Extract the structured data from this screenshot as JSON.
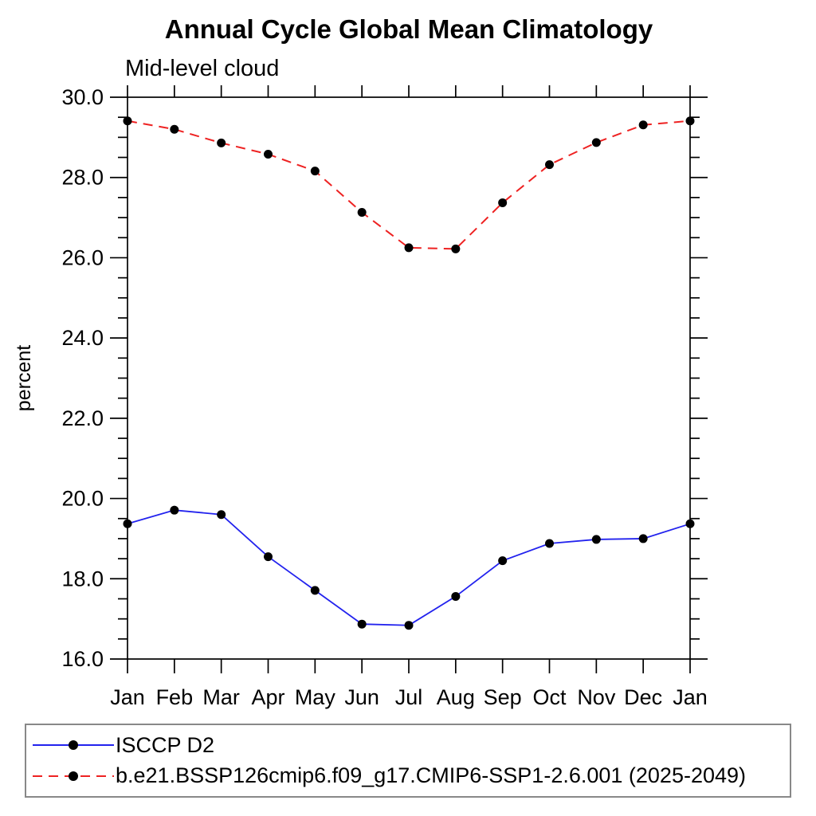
{
  "chart_data": {
    "type": "line",
    "title": "Annual Cycle Global Mean Climatology",
    "subtitle": "Mid-level cloud",
    "xlabel": "",
    "ylabel": "percent",
    "ylim": [
      16.0,
      30.0
    ],
    "ytick_major_step": 2.0,
    "ytick_minor_step": 0.5,
    "ytick_labels": [
      "16.0",
      "18.0",
      "20.0",
      "22.0",
      "24.0",
      "26.0",
      "28.0",
      "30.0"
    ],
    "categories": [
      "Jan",
      "Feb",
      "Mar",
      "Apr",
      "May",
      "Jun",
      "Jul",
      "Aug",
      "Sep",
      "Oct",
      "Nov",
      "Dec",
      "Jan"
    ],
    "grid": false,
    "legend_position": "bottom",
    "axis_color": "#000000",
    "series": [
      {
        "name": "ISCCP D2",
        "line_style": "solid",
        "color": "#2222ee",
        "marker": "circle",
        "marker_color": "#000000",
        "values": [
          19.37,
          19.71,
          19.6,
          18.55,
          17.71,
          16.87,
          16.84,
          17.56,
          18.45,
          18.88,
          18.98,
          19.0,
          19.37
        ]
      },
      {
        "name": "b.e21.BSSP126cmip6.f09_g17.CMIP6-SSP1-2.6.001 (2025-2049)",
        "line_style": "dashed",
        "color": "#ee2222",
        "marker": "circle",
        "marker_color": "#000000",
        "values": [
          29.41,
          29.2,
          28.86,
          28.58,
          28.16,
          27.13,
          26.25,
          26.22,
          27.37,
          28.32,
          28.87,
          29.31,
          29.41
        ]
      }
    ]
  }
}
